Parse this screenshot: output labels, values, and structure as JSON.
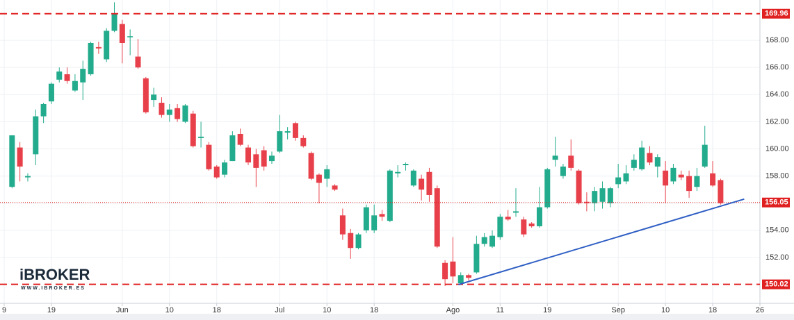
{
  "chart_data": {
    "type": "candlestick",
    "up_color": "#22ab8c",
    "down_color": "#e8404a",
    "open": [
      157.2,
      160.1,
      157.9,
      159.6,
      162.4,
      163.5,
      165.1,
      165.5,
      164.3,
      164.9,
      165.5,
      167.5,
      166.6,
      168.7,
      169.2,
      168.3,
      166.8,
      165.2,
      163.6,
      163.4,
      162.5,
      163.0,
      162.0,
      162.6,
      160.8,
      160.3,
      158.7,
      158.1,
      159.1,
      161.1,
      160.1,
      159.6,
      159.9,
      159.1,
      159.8,
      161.2,
      161.9,
      160.8,
      159.7,
      158.1,
      157.8,
      157.3,
      155.1,
      153.8,
      152.7,
      154.0,
      154.0,
      155.2,
      154.7,
      158.2,
      158.8,
      157.3,
      157.8,
      158.3,
      157.1,
      151.6,
      151.7,
      150.1,
      150.7,
      150.9,
      153.0,
      152.8,
      153.5,
      155.0,
      155.3,
      154.8,
      154.5,
      154.3,
      155.7,
      159.2,
      158.0,
      159.5,
      158.4,
      156.1,
      156.0,
      156.1,
      156.0,
      157.4,
      157.6,
      158.6,
      158.5,
      159.7,
      158.7,
      158.4,
      157.6,
      158.1,
      158.0,
      157.2,
      158.7,
      158.2,
      157.7
    ],
    "high": [
      161.0,
      160.5,
      158.2,
      162.9,
      163.4,
      164.9,
      166.0,
      166.0,
      165.5,
      166.5,
      167.9,
      167.9,
      168.9,
      170.8,
      169.5,
      168.8,
      168.1,
      165.3,
      164.5,
      163.8,
      163.3,
      163.3,
      163.3,
      162.8,
      162.0,
      160.5,
      158.8,
      159.2,
      161.3,
      161.5,
      160.3,
      160.0,
      160.2,
      159.8,
      162.5,
      161.6,
      162.0,
      161.0,
      159.8,
      158.2,
      158.8,
      157.4,
      155.6,
      154.1,
      153.8,
      155.9,
      155.9,
      155.5,
      158.5,
      158.8,
      159.0,
      158.5,
      158.1,
      158.6,
      157.3,
      151.8,
      153.5,
      150.9,
      150.8,
      153.6,
      153.8,
      154.0,
      155.2,
      155.5,
      157.1,
      155.0,
      154.6,
      157.2,
      158.6,
      160.9,
      158.9,
      160.7,
      158.5,
      156.8,
      157.2,
      157.6,
      157.2,
      158.9,
      158.8,
      159.6,
      160.6,
      160.2,
      159.6,
      159.1,
      158.9,
      158.4,
      158.4,
      158.6,
      161.7,
      159.1,
      157.8
    ],
    "low": [
      157.1,
      157.6,
      157.6,
      158.8,
      161.9,
      163.3,
      164.9,
      164.8,
      164.2,
      163.6,
      165.4,
      167.0,
      166.4,
      168.6,
      166.3,
      166.9,
      165.9,
      162.6,
      163.1,
      162.3,
      162.0,
      162.0,
      161.9,
      160.1,
      160.1,
      158.4,
      157.8,
      157.9,
      159.1,
      160.2,
      158.8,
      157.2,
      158.4,
      158.9,
      159.7,
      160.7,
      160.6,
      160.1,
      157.7,
      156.0,
      157.2,
      156.9,
      153.3,
      151.9,
      152.6,
      153.8,
      153.8,
      154.7,
      154.6,
      157.9,
      158.4,
      157.2,
      156.2,
      156.1,
      152.7,
      149.9,
      150.1,
      150.0,
      150.3,
      150.8,
      152.8,
      152.7,
      153.3,
      154.7,
      155.0,
      153.5,
      154.2,
      154.2,
      155.6,
      158.7,
      157.8,
      158.4,
      155.9,
      155.4,
      155.4,
      155.6,
      155.7,
      157.1,
      157.4,
      158.4,
      158.4,
      158.8,
      157.9,
      156.0,
      157.4,
      157.7,
      156.4,
      156.9,
      158.6,
      157.2,
      155.9
    ],
    "close": [
      161.0,
      158.7,
      158.0,
      162.4,
      163.3,
      164.8,
      165.7,
      165.0,
      165.0,
      165.9,
      167.8,
      167.4,
      168.7,
      170.0,
      167.8,
      168.3,
      166.0,
      162.7,
      164.0,
      162.5,
      162.9,
      162.2,
      163.2,
      160.2,
      160.9,
      158.5,
      157.9,
      159.0,
      161.0,
      160.3,
      159.0,
      158.6,
      158.7,
      159.5,
      161.3,
      161.3,
      160.8,
      160.2,
      157.8,
      157.5,
      158.5,
      157.0,
      153.7,
      152.7,
      153.7,
      155.7,
      155.1,
      155.0,
      158.4,
      158.3,
      158.9,
      158.4,
      157.0,
      156.6,
      152.8,
      150.4,
      150.6,
      150.7,
      150.5,
      153.0,
      153.5,
      153.6,
      155.0,
      154.8,
      155.4,
      153.7,
      154.3,
      155.7,
      158.5,
      159.5,
      158.7,
      158.6,
      156.0,
      156.0,
      156.9,
      157.1,
      157.1,
      157.9,
      158.2,
      159.2,
      160.1,
      159.0,
      159.4,
      157.3,
      158.6,
      157.9,
      156.9,
      158.0,
      160.3,
      157.3,
      156.0
    ],
    "xlim": [
      -1,
      95
    ],
    "xticks": [
      {
        "value": -1,
        "label": "9"
      },
      {
        "value": 5,
        "label": "19"
      },
      {
        "value": 14,
        "label": "Jun"
      },
      {
        "value": 20,
        "label": "10"
      },
      {
        "value": 26,
        "label": "18"
      },
      {
        "value": 34,
        "label": "Jul"
      },
      {
        "value": 40,
        "label": "10"
      },
      {
        "value": 46,
        "label": "18"
      },
      {
        "value": 56,
        "label": "Ago"
      },
      {
        "value": 62,
        "label": "11"
      },
      {
        "value": 68,
        "label": "19"
      },
      {
        "value": 77,
        "label": "Sep"
      },
      {
        "value": 83,
        "label": "10"
      },
      {
        "value": 89,
        "label": "18"
      },
      {
        "value": 95,
        "label": "26"
      }
    ],
    "ylim": [
      148.62,
      170.97
    ],
    "yticks": [
      {
        "value": 152,
        "label": "152.00"
      },
      {
        "value": 154,
        "label": "154.00"
      },
      {
        "value": 156,
        "label": "156.00"
      },
      {
        "value": 158,
        "label": "158.00"
      },
      {
        "value": 160,
        "label": "160.00"
      },
      {
        "value": 162,
        "label": "162.00"
      },
      {
        "value": 164,
        "label": "164.00"
      },
      {
        "value": 166,
        "label": "166.00"
      },
      {
        "value": 168,
        "label": "168.00"
      }
    ],
    "grid": true,
    "levels": [
      {
        "value": 169.96,
        "line": "dashed",
        "color": "#e02020"
      },
      {
        "value": 150.02,
        "line": "dashed",
        "color": "#e02020"
      },
      {
        "value": 156.05,
        "line": "dotted",
        "color": "#e02020"
      }
    ],
    "trendline": {
      "x": [
        56.7,
        93.0
      ],
      "y": [
        150.0,
        156.3
      ],
      "color": "#2f5fc4"
    },
    "logo": {
      "name": "iBROKER",
      "url": "WWW.IBROKER.ES"
    }
  }
}
